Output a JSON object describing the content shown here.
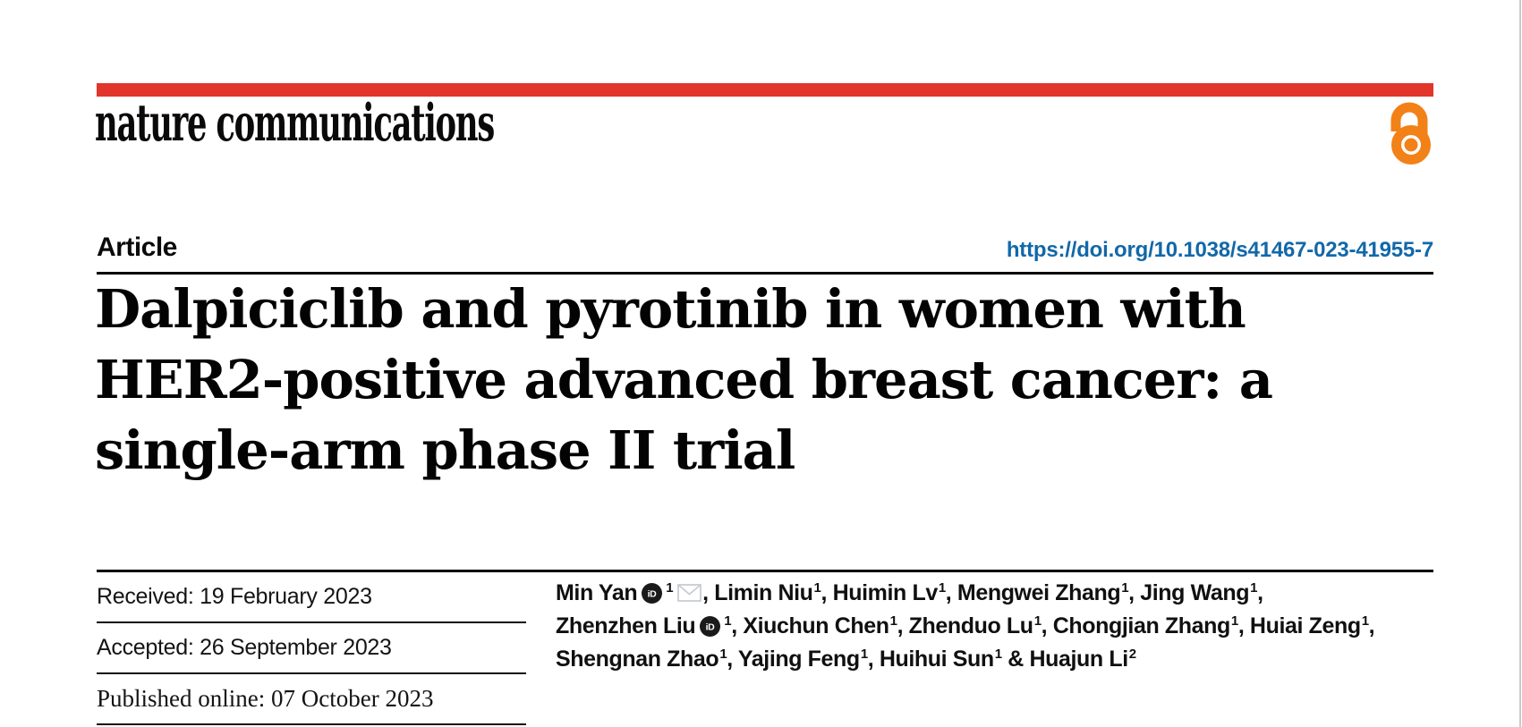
{
  "colors": {
    "accent_red": "#e2352b",
    "open_access_orange": "#f28118",
    "doi_blue": "#1268a8",
    "orcid_badge": "#1a1a1a",
    "envelope_gray": "#c6cbd0",
    "rule_black": "#000000",
    "page_edge_gray": "#c9c9c9"
  },
  "masthead": {
    "journal_name": "nature communications",
    "open_access_icon": "open-access-padlock"
  },
  "article_header": {
    "kicker": "Article",
    "doi": "https://doi.org/10.1038/s41467-023-41955-7"
  },
  "title": {
    "lines": [
      "Dalpiciclib and pyrotinib in women with",
      "HER2-positive advanced breast cancer: a",
      "single-arm phase II trial"
    ]
  },
  "history": {
    "received": "Received: 19 February 2023",
    "accepted": "Accepted: 26 September 2023",
    "published": "Published online: 07 October 2023"
  },
  "authors": {
    "lines": [
      [
        {
          "name": "Min Yan",
          "orcid": true,
          "sup": "1",
          "envelope": true,
          "trail": ", "
        },
        {
          "name": "Limin Niu",
          "sup": "1",
          "trail": ", "
        },
        {
          "name": "Huimin Lv",
          "sup": "1",
          "trail": ", "
        },
        {
          "name": "Mengwei Zhang",
          "sup": "1",
          "trail": ", "
        },
        {
          "name": "Jing Wang",
          "sup": "1",
          "trail": ","
        }
      ],
      [
        {
          "name": "Zhenzhen Liu",
          "orcid": true,
          "sup": "1",
          "trail": ", "
        },
        {
          "name": "Xiuchun Chen",
          "sup": "1",
          "trail": ", "
        },
        {
          "name": "Zhenduo Lu",
          "sup": "1",
          "trail": ", "
        },
        {
          "name": "Chongjian Zhang",
          "sup": "1",
          "trail": ", "
        },
        {
          "name": "Huiai Zeng",
          "sup": "1",
          "trail": ","
        }
      ],
      [
        {
          "name": "Shengnan Zhao",
          "sup": "1",
          "trail": ", "
        },
        {
          "name": "Yajing Feng",
          "sup": "1",
          "trail": ", "
        },
        {
          "name": "Huihui Sun",
          "sup": "1",
          "trail": " & "
        },
        {
          "name": "Huajun Li",
          "sup": "2",
          "trail": ""
        }
      ]
    ]
  }
}
